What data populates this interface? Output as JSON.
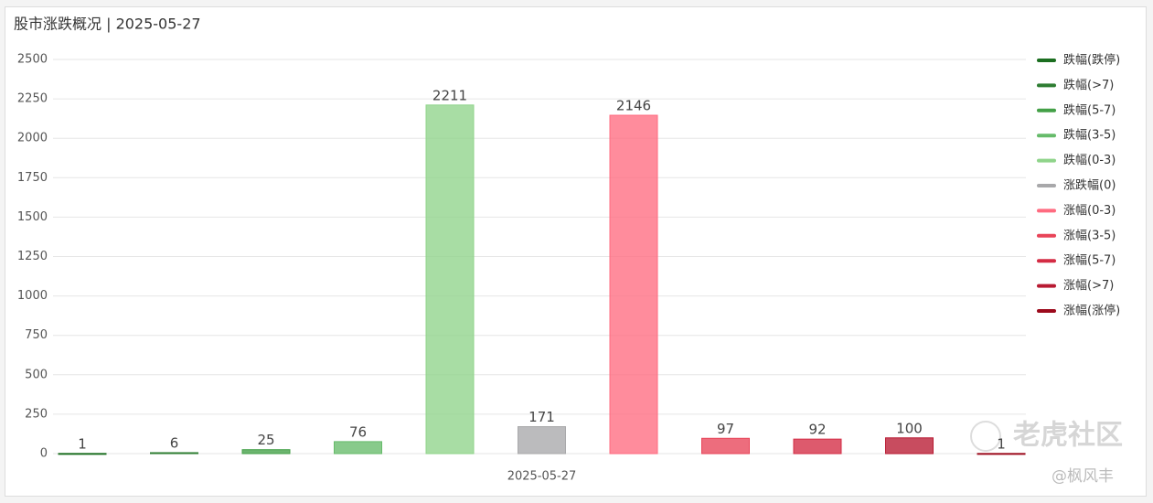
{
  "chart_data": {
    "type": "bar",
    "title": "股市涨跌概况 | 2025-05-27",
    "categories": [
      "2025-05-27"
    ],
    "series": [
      {
        "name": "跌幅(跌停)",
        "color": "#1b6e20",
        "values": [
          1
        ]
      },
      {
        "name": "跌幅(>7)",
        "color": "#2e7d32",
        "values": [
          6
        ]
      },
      {
        "name": "跌幅(5-7)",
        "color": "#43a047",
        "values": [
          25
        ]
      },
      {
        "name": "跌幅(3-5)",
        "color": "#66bb6a",
        "values": [
          76
        ]
      },
      {
        "name": "跌幅(0-3)",
        "color": "#8fd48a",
        "values": [
          2211
        ]
      },
      {
        "name": "涨跌幅(0)",
        "color": "#a8a8aa",
        "values": [
          171
        ]
      },
      {
        "name": "涨幅(0-3)",
        "color": "#ff6b80",
        "values": [
          2146
        ]
      },
      {
        "name": "涨幅(3-5)",
        "color": "#e84458",
        "values": [
          97
        ]
      },
      {
        "name": "涨幅(5-7)",
        "color": "#d42c44",
        "values": [
          92
        ]
      },
      {
        "name": "涨幅(>7)",
        "color": "#b81a32",
        "values": [
          100
        ]
      },
      {
        "name": "涨幅(涨停)",
        "color": "#9c0a1c",
        "values": [
          1
        ]
      }
    ],
    "ylim": [
      0,
      2500
    ],
    "yticks": [
      0,
      250,
      500,
      750,
      1000,
      1250,
      1500,
      1750,
      2000,
      2250,
      2500
    ],
    "grid": true,
    "legend": "right",
    "watermark": [
      "老虎社区",
      "@枫风丰"
    ]
  }
}
